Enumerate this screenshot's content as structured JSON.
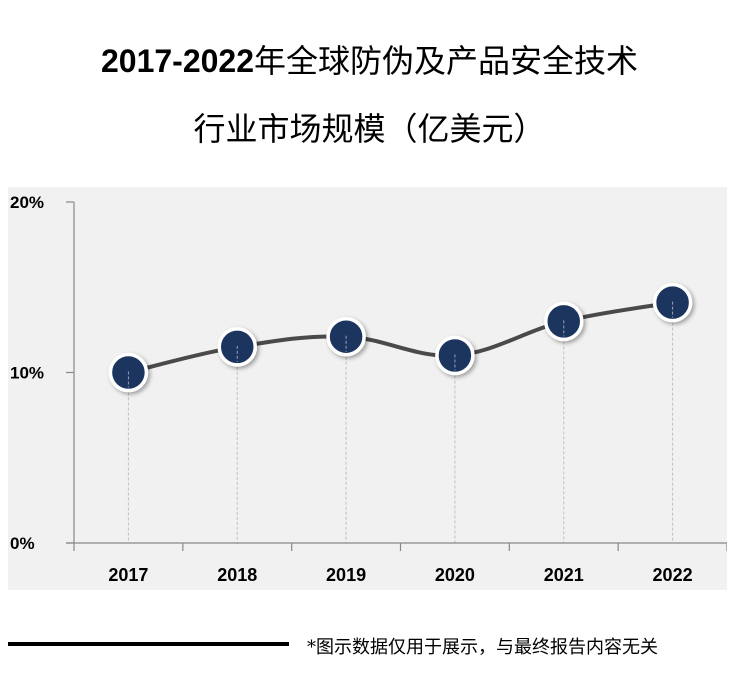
{
  "title": {
    "line1_prefix": "2017-2022",
    "line1_suffix": "年全球防伪及产品安全技术",
    "line2": "行业市场规模（亿美元）"
  },
  "footer": {
    "note": "*图示数据仅用于展示，与最终报告内容无关"
  },
  "colors": {
    "background": "#f1f1f1",
    "line": "#4a4a4a",
    "marker_fill": "#1c355e",
    "marker_border": "#ffffff",
    "axis": "#888888",
    "dropline": "#c0c0c0"
  },
  "chart_data": {
    "type": "line",
    "title": "2017-2022年全球防伪及产品安全技术行业市场规模（亿美元）",
    "xlabel": "",
    "ylabel": "",
    "categories": [
      "2017",
      "2018",
      "2019",
      "2020",
      "2021",
      "2022"
    ],
    "series": [
      {
        "name": "市场规模",
        "values": [
          10.0,
          11.5,
          12.1,
          11.0,
          13.0,
          14.1
        ]
      }
    ],
    "ylim": [
      0,
      20
    ],
    "yticks": [
      "0%",
      "10%",
      "20%"
    ],
    "ytick_values": [
      0,
      10,
      20
    ],
    "grid": false,
    "drop_lines": true,
    "smooth": true,
    "legend": "none"
  }
}
